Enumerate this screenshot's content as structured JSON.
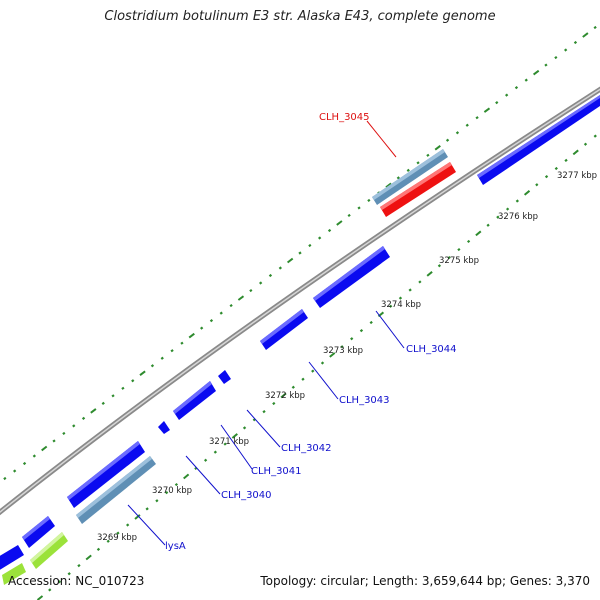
{
  "title": "Clostridium botulinum E3 str. Alaska E43, complete genome",
  "footer": {
    "accession": "Accession: NC_010723",
    "summary": "Topology: circular; Length: 3,659,644 bp; Genes: 3,370"
  },
  "colors": {
    "backbone": "#8a8a8a",
    "tick": "#2e8b2e",
    "gene_blue": "#0a0af0",
    "gene_steel": "#5f8fb5",
    "gene_red": "#ee1111",
    "gene_lime": "#9be23a",
    "label_blue": "#1010cc",
    "label_red": "#dd1111"
  },
  "kbp_labels": [
    "3269 kbp",
    "3270 kbp",
    "3271 kbp",
    "3272 kbp",
    "3273 kbp",
    "3274 kbp",
    "3275 kbp",
    "3276 kbp",
    "3277 kbp"
  ],
  "gene_labels": [
    {
      "name": "CLH_3045",
      "color": "red"
    },
    {
      "name": "CLH_3044",
      "color": "blue"
    },
    {
      "name": "CLH_3043",
      "color": "blue"
    },
    {
      "name": "CLH_3042",
      "color": "blue"
    },
    {
      "name": "CLH_3041",
      "color": "blue"
    },
    {
      "name": "CLH_3040",
      "color": "blue"
    },
    {
      "name": "lysA",
      "color": "blue"
    }
  ]
}
